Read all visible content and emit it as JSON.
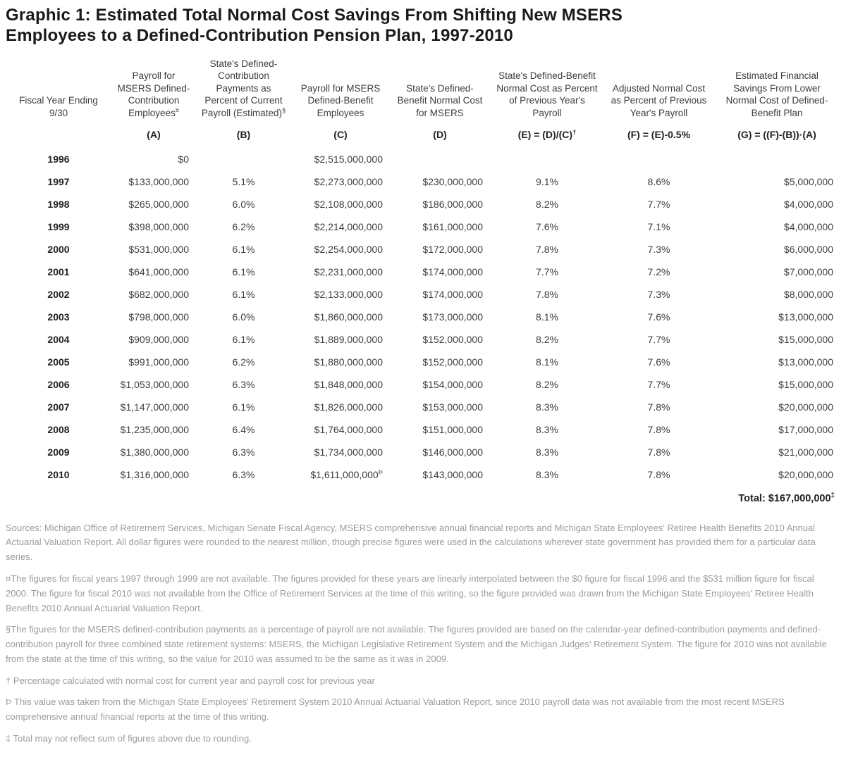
{
  "title": "Graphic 1: Estimated Total Normal Cost Savings From Shifting New MSERS Employees to a Defined-Contribution Pension Plan, 1997-2010",
  "colors": {
    "title": "#1a1a1a",
    "strong": "#222222",
    "body": "#3d3d3d",
    "footnote": "#9c9c9c",
    "background": "#ffffff"
  },
  "chart_data": {
    "type": "table",
    "title": "Graphic 1: Estimated Total Normal Cost Savings From Shifting New MSERS Employees to a Defined-Contribution Pension Plan, 1997-2010",
    "columns": [
      {
        "label": "Fiscal Year Ending 9/30",
        "sup": "",
        "formula": "",
        "formula_sup": "",
        "align": "center"
      },
      {
        "label": "Payroll for MSERS Defined-Contribution Employees",
        "sup": "¤",
        "formula": "(A)",
        "formula_sup": "",
        "align": "right"
      },
      {
        "label": "State's Defined-Contribution Payments as Percent of Current Payroll (Estimated)",
        "sup": "§",
        "formula": "(B)",
        "formula_sup": "",
        "align": "center"
      },
      {
        "label": "Payroll for MSERS Defined-Benefit Employees",
        "sup": "",
        "formula": "(C)",
        "formula_sup": "",
        "align": "right"
      },
      {
        "label": "State's Defined-Benefit Normal Cost for MSERS",
        "sup": "",
        "formula": "(D)",
        "formula_sup": "",
        "align": "right"
      },
      {
        "label": "State's Defined-Benefit Normal Cost as Percent of Previous Year's Payroll",
        "sup": "",
        "formula": "(E) = (D)/(C)",
        "formula_sup": "†",
        "align": "center"
      },
      {
        "label": "Adjusted Normal Cost as Percent of Previous Year's Payroll",
        "sup": "",
        "formula": "(F) = (E)-0.5%",
        "formula_sup": "",
        "align": "center"
      },
      {
        "label": "Estimated Financial Savings From Lower Normal Cost of Defined-Benefit Plan",
        "sup": "",
        "formula": "(G) = ((F)-(B))·(A)",
        "formula_sup": "",
        "align": "right"
      }
    ],
    "rows": [
      {
        "values": [
          "1996",
          "$0",
          "",
          "$2,515,000,000",
          "",
          "",
          "",
          ""
        ]
      },
      {
        "values": [
          "1997",
          "$133,000,000",
          "5.1%",
          "$2,273,000,000",
          "$230,000,000",
          "9.1%",
          "8.6%",
          "$5,000,000"
        ]
      },
      {
        "values": [
          "1998",
          "$265,000,000",
          "6.0%",
          "$2,108,000,000",
          "$186,000,000",
          "8.2%",
          "7.7%",
          "$4,000,000"
        ]
      },
      {
        "values": [
          "1999",
          "$398,000,000",
          "6.2%",
          "$2,214,000,000",
          "$161,000,000",
          "7.6%",
          "7.1%",
          "$4,000,000"
        ]
      },
      {
        "values": [
          "2000",
          "$531,000,000",
          "6.1%",
          "$2,254,000,000",
          "$172,000,000",
          "7.8%",
          "7.3%",
          "$6,000,000"
        ]
      },
      {
        "values": [
          "2001",
          "$641,000,000",
          "6.1%",
          "$2,231,000,000",
          "$174,000,000",
          "7.7%",
          "7.2%",
          "$7,000,000"
        ]
      },
      {
        "values": [
          "2002",
          "$682,000,000",
          "6.1%",
          "$2,133,000,000",
          "$174,000,000",
          "7.8%",
          "7.3%",
          "$8,000,000"
        ]
      },
      {
        "values": [
          "2003",
          "$798,000,000",
          "6.0%",
          "$1,860,000,000",
          "$173,000,000",
          "8.1%",
          "7.6%",
          "$13,000,000"
        ]
      },
      {
        "values": [
          "2004",
          "$909,000,000",
          "6.1%",
          "$1,889,000,000",
          "$152,000,000",
          "8.2%",
          "7.7%",
          "$15,000,000"
        ]
      },
      {
        "values": [
          "2005",
          "$991,000,000",
          "6.2%",
          "$1,880,000,000",
          "$152,000,000",
          "8.1%",
          "7.6%",
          "$13,000,000"
        ]
      },
      {
        "values": [
          "2006",
          "$1,053,000,000",
          "6.3%",
          "$1,848,000,000",
          "$154,000,000",
          "8.2%",
          "7.7%",
          "$15,000,000"
        ]
      },
      {
        "values": [
          "2007",
          "$1,147,000,000",
          "6.1%",
          "$1,826,000,000",
          "$153,000,000",
          "8.3%",
          "7.8%",
          "$20,000,000"
        ]
      },
      {
        "values": [
          "2008",
          "$1,235,000,000",
          "6.4%",
          "$1,764,000,000",
          "$151,000,000",
          "8.3%",
          "7.8%",
          "$17,000,000"
        ]
      },
      {
        "values": [
          "2009",
          "$1,380,000,000",
          "6.3%",
          "$1,734,000,000",
          "$146,000,000",
          "8.3%",
          "7.8%",
          "$21,000,000"
        ]
      },
      {
        "values": [
          "2010",
          "$1,316,000,000",
          "6.3%",
          "$1,611,000,000",
          "$143,000,000",
          "8.3%",
          "7.8%",
          "$20,000,000"
        ],
        "sups": {
          "3": "Þ"
        }
      }
    ],
    "total": {
      "label": "Total: $167,000,000",
      "sup": "‡"
    }
  },
  "footnotes": [
    "Sources: Michigan Office of Retirement Services, Michigan Senate Fiscal Agency, MSERS comprehensive annual financial reports and Michigan State Employees' Retiree Health Benefits 2010 Annual Actuarial Valuation Report. All dollar figures were rounded to the nearest million, though precise figures were used in the calculations wherever state government has provided them for a particular data series.",
    "¤The figures for fiscal years 1997 through 1999 are not available. The figures provided for these years are linearly interpolated between the $0 figure for fiscal 1996 and the $531 million figure for fiscal 2000. The figure for fiscal 2010 was not available from the Office of Retirement Services at the time of this writing, so the figure provided was drawn from the Michigan State Employees' Retiree Health Benefits 2010 Annual Actuarial Valuation Report.",
    "§The figures for the MSERS defined-contribution payments as a percentage of payroll are not available. The figures provided are based on the calendar-year defined-contribution payments and defined-contribution payroll for three combined state retirement systems: MSERS, the Michigan Legislative Retirement System and the Michigan Judges' Retirement System. The figure for 2010 was not available from the state at the time of this writing, so the value for 2010 was assumed to be the same as it was in 2009.",
    "† Percentage calculated with normal cost for current year and payroll cost for previous year",
    "Þ This value was taken from the Michigan State Employees' Retirement System 2010 Annual Actuarial Valuation Report, since 2010 payroll data was not available from the most recent MSERS comprehensive annual financial reports at the time of this writing.",
    "‡ Total may not reflect sum of figures above due to rounding."
  ]
}
